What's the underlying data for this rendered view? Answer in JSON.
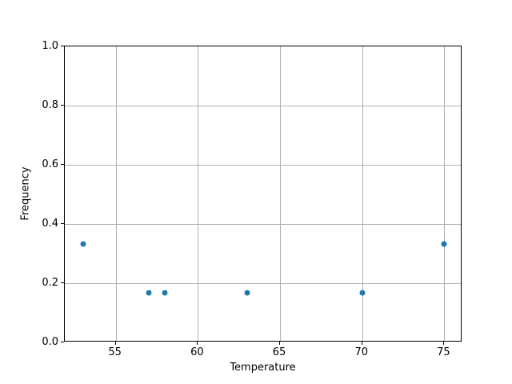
{
  "figure": {
    "background_color": "#ffffff",
    "axes_edge_color": "#000000",
    "text_color": "#000000"
  },
  "chart_data": {
    "type": "scatter",
    "title": "",
    "xlabel": "Temperature",
    "ylabel": "Frequency",
    "x": [
      53,
      57,
      58,
      63,
      70,
      75
    ],
    "y": [
      0.333,
      0.167,
      0.167,
      0.167,
      0.167,
      0.333
    ],
    "xlim": [
      51.9,
      76.1
    ],
    "ylim": [
      0.0,
      1.0
    ],
    "xticks": [
      55,
      60,
      65,
      70,
      75
    ],
    "xtick_labels": [
      "55",
      "60",
      "65",
      "70",
      "75"
    ],
    "yticks": [
      0.0,
      0.2,
      0.4,
      0.6,
      0.8,
      1.0
    ],
    "ytick_labels": [
      "0.0",
      "0.2",
      "0.4",
      "0.6",
      "0.8",
      "1.0"
    ],
    "grid": true,
    "legend": null,
    "marker_color": "#1f77b4",
    "grid_color": "#b0b0b0",
    "marker_diameter_px": 7
  }
}
